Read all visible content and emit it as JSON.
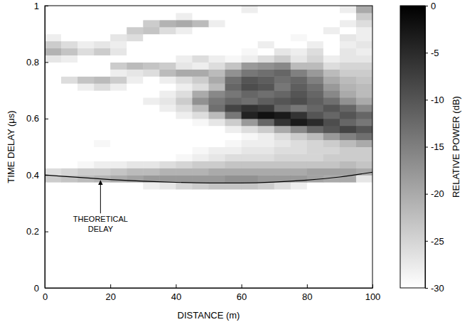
{
  "chart_data": {
    "type": "heatmap",
    "x_label": "DISTANCE (m)",
    "y_label": "TIME DELAY (μs)",
    "xlim": [
      0,
      100
    ],
    "ylim": [
      0,
      1
    ],
    "xticks": [
      0,
      20,
      40,
      60,
      80,
      100
    ],
    "yticks": [
      0,
      0.2,
      0.4,
      0.6,
      0.8,
      1
    ],
    "heatmap": {
      "x_bins": [
        0,
        5,
        10,
        15,
        20,
        25,
        30,
        35,
        40,
        45,
        50,
        55,
        60,
        65,
        70,
        75,
        80,
        85,
        90,
        95,
        100
      ],
      "y_bins": [
        0.3,
        0.325,
        0.35,
        0.375,
        0.4,
        0.425,
        0.45,
        0.475,
        0.5,
        0.525,
        0.55,
        0.575,
        0.6,
        0.625,
        0.65,
        0.675,
        0.7,
        0.725,
        0.75,
        0.775,
        0.8,
        0.825,
        0.85,
        0.875,
        0.9,
        0.925,
        0.95,
        0.975,
        1
      ],
      "values": [
        [
          -30,
          -30,
          -30,
          -30,
          -30,
          -30,
          -30,
          -30,
          -30,
          -30,
          -30,
          -30,
          -30,
          -30,
          -30,
          -30,
          -30,
          -30,
          -30,
          -30
        ],
        [
          -30,
          -30,
          -30,
          -30,
          -30,
          -30,
          -30,
          -30,
          -30,
          -30,
          -30,
          -30,
          -30,
          -30,
          -30,
          -30,
          -30,
          -30,
          -30,
          -30
        ],
        [
          -30,
          -30,
          -30,
          -30,
          -30,
          -30,
          -28,
          -27,
          -25,
          -24,
          -23,
          -23,
          -23,
          -24,
          -26,
          -28,
          -30,
          -30,
          -30,
          -30
        ],
        [
          -24,
          -23,
          -22,
          -21,
          -20,
          -19,
          -18,
          -18,
          -18,
          -18,
          -18,
          -17,
          -17,
          -18,
          -18,
          -18,
          -19,
          -20,
          -20,
          -27
        ],
        [
          -26,
          -25,
          -24,
          -24,
          -23,
          -22,
          -22,
          -21,
          -21,
          -21,
          -20,
          -20,
          -20,
          -20,
          -20,
          -20,
          -19,
          -19,
          -19,
          -20
        ],
        [
          -30,
          -30,
          -29,
          -28,
          -28,
          -27,
          -27,
          -26,
          -25,
          -24,
          -24,
          -23,
          -23,
          -23,
          -23,
          -23,
          -23,
          -23,
          -22,
          -23
        ],
        [
          -30,
          -30,
          -30,
          -30,
          -30,
          -30,
          -30,
          -30,
          -29,
          -28,
          -27,
          -26,
          -26,
          -26,
          -25,
          -25,
          -25,
          -24,
          -24,
          -24
        ],
        [
          -30,
          -30,
          -30,
          -30,
          -30,
          -30,
          -30,
          -30,
          -30,
          -29,
          -28,
          -28,
          -27,
          -27,
          -26,
          -26,
          -25,
          -25,
          -24,
          -24
        ],
        [
          -30,
          -30,
          -30,
          -29,
          -30,
          -30,
          -30,
          -30,
          -30,
          -30,
          -30,
          -29,
          -28,
          -28,
          -27,
          -26,
          -25,
          -24,
          -22,
          -20
        ],
        [
          -30,
          -30,
          -30,
          -30,
          -30,
          -30,
          -30,
          -30,
          -30,
          -30,
          -30,
          -30,
          -29,
          -28,
          -26,
          -24,
          -22,
          -18,
          -15,
          -13
        ],
        [
          -30,
          -30,
          -30,
          -30,
          -30,
          -30,
          -30,
          -30,
          -30,
          -30,
          -30,
          -28,
          -26,
          -24,
          -20,
          -16,
          -12,
          -10,
          -8,
          -10
        ],
        [
          -30,
          -30,
          -30,
          -30,
          -30,
          -30,
          -30,
          -30,
          -30,
          -29,
          -27,
          -24,
          -18,
          -12,
          -6,
          -3,
          -5,
          -9,
          -12,
          -14
        ],
        [
          -30,
          -30,
          -30,
          -30,
          -30,
          -30,
          -30,
          -30,
          -28,
          -26,
          -22,
          -14,
          -4,
          -2,
          -3,
          -6,
          -10,
          -12,
          -10,
          -12
        ],
        [
          -30,
          -30,
          -30,
          -30,
          -30,
          -30,
          -30,
          -28,
          -26,
          -22,
          -13,
          -8,
          -6,
          -7,
          -12,
          -14,
          -12,
          -10,
          -12,
          -16
        ],
        [
          -30,
          -30,
          -30,
          -30,
          -30,
          -30,
          -28,
          -27,
          -24,
          -17,
          -14,
          -12,
          -13,
          -11,
          -10,
          -9,
          -11,
          -13,
          -17,
          -20
        ],
        [
          -30,
          -30,
          -30,
          -30,
          -30,
          -30,
          -30,
          -28,
          -26,
          -20,
          -16,
          -14,
          -12,
          -13,
          -12,
          -10,
          -12,
          -16,
          -20,
          -22
        ],
        [
          -30,
          -30,
          -28,
          -26,
          -28,
          -30,
          -30,
          -30,
          -28,
          -26,
          -22,
          -12,
          -9,
          -10,
          -14,
          -11,
          -13,
          -18,
          -21,
          -22
        ],
        [
          -30,
          -26,
          -23,
          -22,
          -24,
          -28,
          -30,
          -28,
          -26,
          -24,
          -20,
          -13,
          -10,
          -11,
          -13,
          -12,
          -15,
          -20,
          -22,
          -23
        ],
        [
          -30,
          -30,
          -30,
          -30,
          -28,
          -27,
          -26,
          -22,
          -20,
          -20,
          -22,
          -17,
          -14,
          -13,
          -12,
          -15,
          -18,
          -22,
          -24,
          -24
        ],
        [
          -30,
          -30,
          -30,
          -30,
          -24,
          -22,
          -23,
          -24,
          -27,
          -28,
          -26,
          -23,
          -18,
          -17,
          -16,
          -22,
          -22,
          -26,
          -25,
          -25
        ],
        [
          -27,
          -28,
          -30,
          -30,
          -30,
          -30,
          -30,
          -30,
          -28,
          -26,
          -28,
          -29,
          -28,
          -26,
          -24,
          -27,
          -25,
          -28,
          -27,
          -27
        ],
        [
          -21,
          -23,
          -26,
          -24,
          -27,
          -30,
          -30,
          -30,
          -30,
          -30,
          -30,
          -30,
          -29,
          -30,
          -27,
          -28,
          -26,
          -30,
          -27,
          -28
        ],
        [
          -24,
          -26,
          -28,
          -27,
          -28,
          -30,
          -30,
          -30,
          -30,
          -30,
          -30,
          -30,
          -30,
          -28,
          -30,
          -30,
          -28,
          -30,
          -28,
          -27
        ],
        [
          -28,
          -30,
          -30,
          -30,
          -27,
          -26,
          -30,
          -30,
          -30,
          -30,
          -30,
          -30,
          -30,
          -30,
          -30,
          -29,
          -30,
          -30,
          -27,
          -28
        ],
        [
          -30,
          -30,
          -30,
          -30,
          -30,
          -24,
          -23,
          -26,
          -28,
          -30,
          -30,
          -30,
          -30,
          -30,
          -30,
          -30,
          -30,
          -28,
          -30,
          -28
        ],
        [
          -30,
          -30,
          -30,
          -30,
          -30,
          -30,
          -24,
          -21,
          -20,
          -22,
          -28,
          -30,
          -30,
          -30,
          -30,
          -30,
          -30,
          -30,
          -28,
          -26
        ],
        [
          -30,
          -30,
          -30,
          -30,
          -30,
          -30,
          -30,
          -30,
          -28,
          -30,
          -30,
          -30,
          -30,
          -30,
          -30,
          -30,
          -30,
          -30,
          -30,
          -24
        ],
        [
          -30,
          -30,
          -30,
          -30,
          -30,
          -30,
          -30,
          -30,
          -30,
          -30,
          -30,
          -30,
          -28,
          -30,
          -30,
          -30,
          -30,
          -30,
          -28,
          -20
        ]
      ]
    },
    "colorbar": {
      "label": "RELATIVE POWER (dB)",
      "range": [
        -30,
        0
      ],
      "ticks": [
        0,
        -5,
        -10,
        -15,
        -20,
        -25,
        -30
      ]
    },
    "series": [
      {
        "type": "line",
        "color": "#000000",
        "x": [
          0,
          10,
          20,
          30,
          40,
          50,
          60,
          70,
          80,
          90,
          100
        ],
        "values": [
          0.4,
          0.392,
          0.384,
          0.378,
          0.374,
          0.372,
          0.372,
          0.375,
          0.382,
          0.393,
          0.41
        ]
      }
    ],
    "annotations": [
      {
        "lines": [
          "THEORETICAL",
          "DELAY"
        ],
        "x": 17,
        "y": 0.385
      }
    ]
  }
}
